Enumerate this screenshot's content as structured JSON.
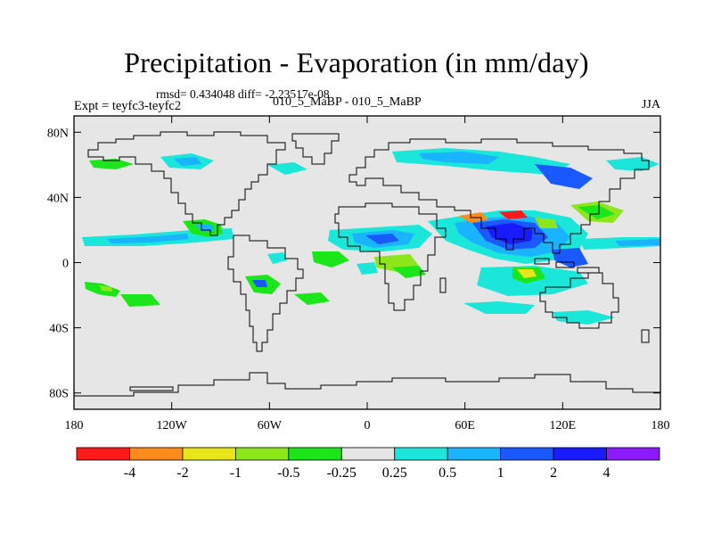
{
  "title": "Precipitation - Evaporation (in mm/day)",
  "stats_text": "rmsd= 0.434048 diff= -2.23517e-08",
  "expt_label": "Expt = teyfc3-teyfc2",
  "center_label": "010_5_MaBP - 010_5_MaBP",
  "season": "JJA",
  "lat_ticks": [
    {
      "value": 80,
      "label": "80N"
    },
    {
      "value": 40,
      "label": "40N"
    },
    {
      "value": 0,
      "label": "0"
    },
    {
      "value": -40,
      "label": "40S"
    },
    {
      "value": -80,
      "label": "80S"
    }
  ],
  "lon_ticks": [
    {
      "value": -180,
      "label": "180"
    },
    {
      "value": -120,
      "label": "120W"
    },
    {
      "value": -60,
      "label": "60W"
    },
    {
      "value": 0,
      "label": "0"
    },
    {
      "value": 60,
      "label": "60E"
    },
    {
      "value": 120,
      "label": "120E"
    },
    {
      "value": 180,
      "label": "180"
    }
  ],
  "colorbar": {
    "colors": [
      "#ff1a1a",
      "#ff8c1a",
      "#e6e61a",
      "#8ce61a",
      "#1ae61a",
      "#e6e6e6",
      "#1ae6d9",
      "#1ab3ff",
      "#1a59ff",
      "#1a1aff",
      "#8c1aff"
    ],
    "labels": [
      "-4",
      "-2",
      "-1",
      "-0.5",
      "-0.25",
      "0.25",
      "0.5",
      "1",
      "2",
      "4"
    ]
  },
  "map_extent": {
    "lon": [
      -180,
      180
    ],
    "lat": [
      -90,
      90
    ]
  },
  "background_color": "#e6e6e6"
}
